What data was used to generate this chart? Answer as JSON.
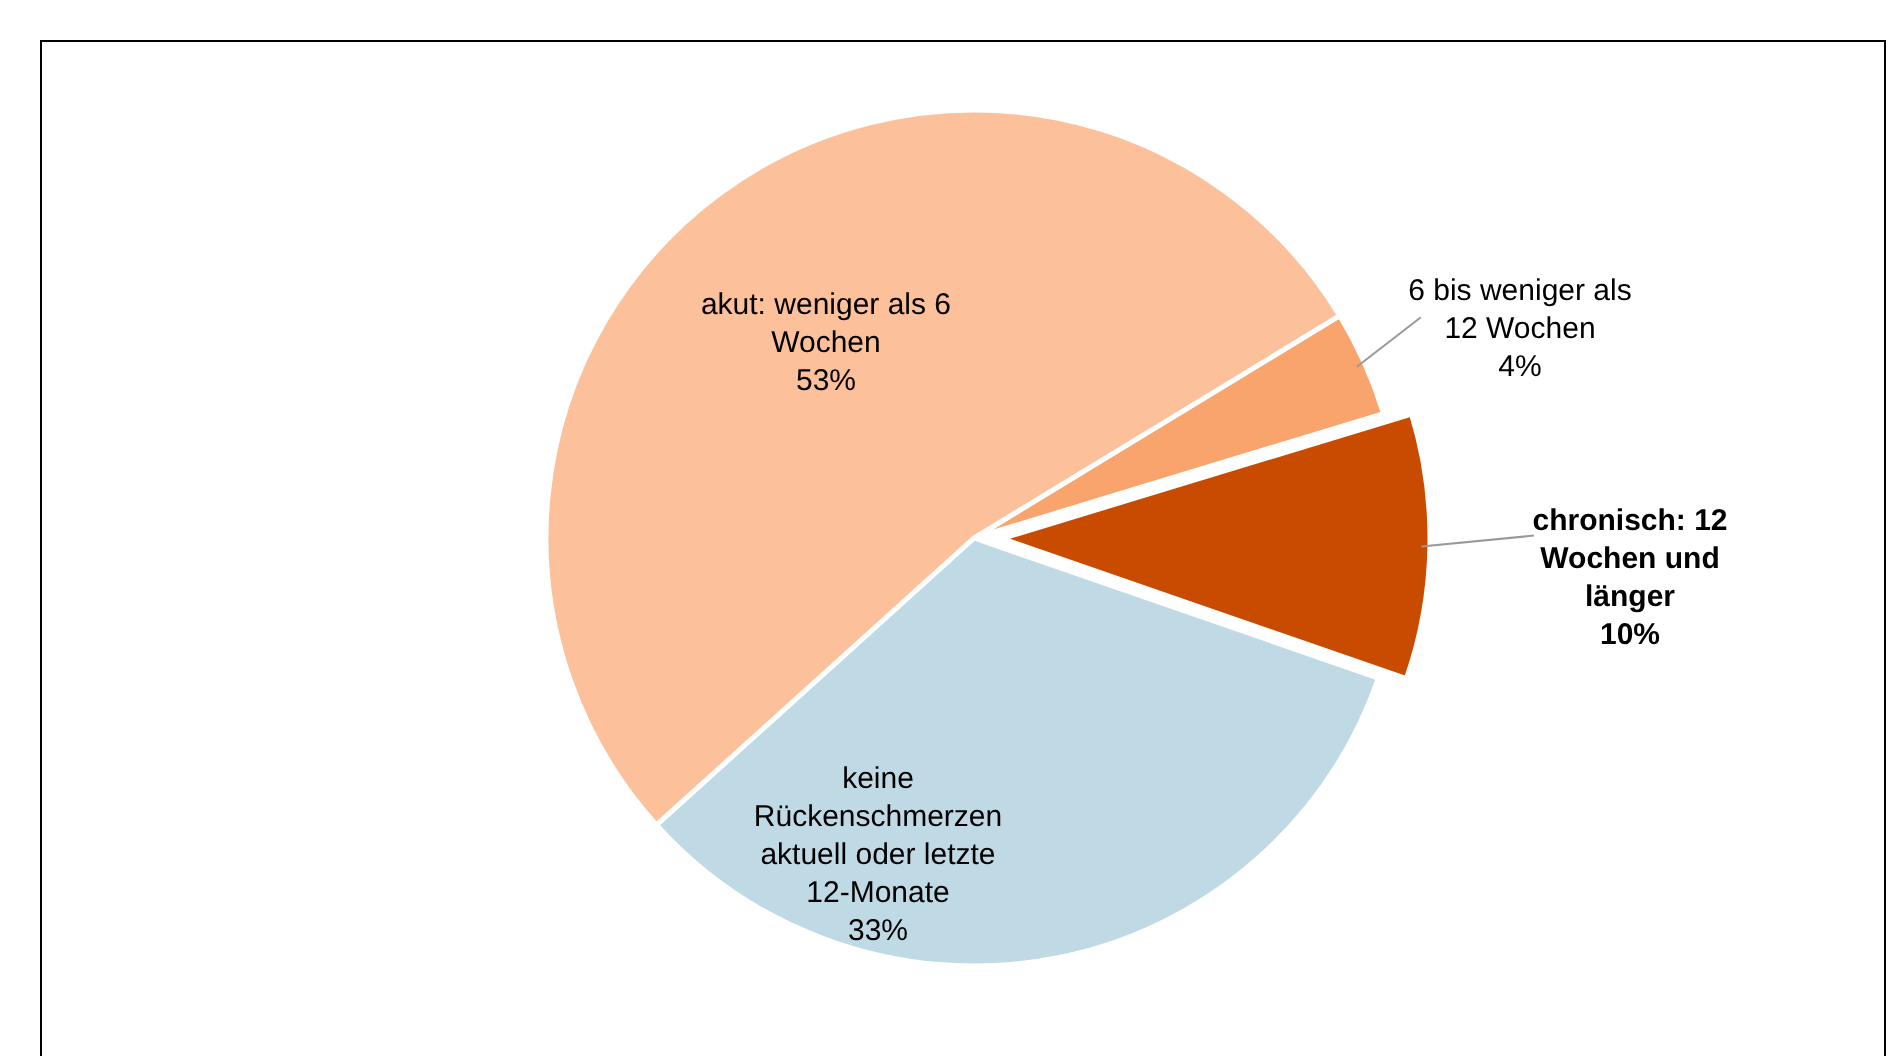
{
  "chart_data": {
    "type": "pie",
    "categories": [
      "6 bis weniger als 12 Wochen",
      "chronisch: 12 Wochen und länger",
      "keine Rückenschmerzen aktuell oder letzte 12-Monate",
      "akut: weniger als 6 Wochen"
    ],
    "values": [
      4,
      10,
      33,
      53
    ],
    "value_labels": [
      "4%",
      "10%",
      "33%",
      "53%"
    ],
    "colors": [
      "#f9a46c",
      "#c84b00",
      "#bfd9e5",
      "#fcc09a"
    ]
  }
}
